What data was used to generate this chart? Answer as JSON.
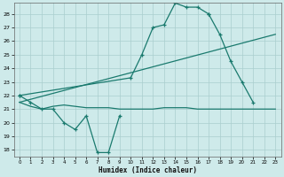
{
  "xlabel": "Humidex (Indice chaleur)",
  "background_color": "#ceeaea",
  "grid_color": "#aacece",
  "line_color": "#1a7a6e",
  "xlim": [
    -0.5,
    23.5
  ],
  "ylim": [
    17.5,
    28.8
  ],
  "yticks": [
    18,
    19,
    20,
    21,
    22,
    23,
    24,
    25,
    26,
    27,
    28
  ],
  "xticks": [
    0,
    1,
    2,
    3,
    4,
    5,
    6,
    7,
    8,
    9,
    10,
    11,
    12,
    13,
    14,
    15,
    16,
    17,
    18,
    19,
    20,
    21,
    22,
    23
  ],
  "series": [
    {
      "x": [
        0,
        1,
        2,
        3,
        4,
        5,
        6,
        7,
        8,
        9
      ],
      "y": [
        22.0,
        21.5,
        21.0,
        21.0,
        20.0,
        19.5,
        20.5,
        17.8,
        17.8,
        20.5
      ],
      "marker": true
    },
    {
      "x": [
        0,
        10,
        11,
        12,
        13,
        14,
        15,
        16,
        17
      ],
      "y": [
        22.0,
        23.3,
        25.0,
        27.0,
        27.2,
        28.8,
        28.5,
        28.5,
        28.0
      ],
      "marker": true
    },
    {
      "x": [
        17,
        18,
        19,
        20,
        21
      ],
      "y": [
        28.0,
        26.5,
        24.5,
        23.0,
        21.5
      ],
      "marker": true
    },
    {
      "x": [
        0,
        1,
        2,
        3,
        4,
        5,
        6,
        7,
        8,
        9,
        10,
        11,
        12,
        13,
        14,
        15,
        16,
        17,
        18,
        19,
        20,
        21,
        22,
        23
      ],
      "y": [
        21.5,
        21.2,
        21.0,
        21.2,
        21.3,
        21.2,
        21.1,
        21.1,
        21.1,
        21.0,
        21.0,
        21.0,
        21.0,
        21.1,
        21.1,
        21.1,
        21.0,
        21.0,
        21.0,
        21.0,
        21.0,
        21.0,
        21.0,
        21.0
      ],
      "marker": false
    },
    {
      "x": [
        0,
        23
      ],
      "y": [
        21.5,
        26.5
      ],
      "marker": false
    }
  ]
}
